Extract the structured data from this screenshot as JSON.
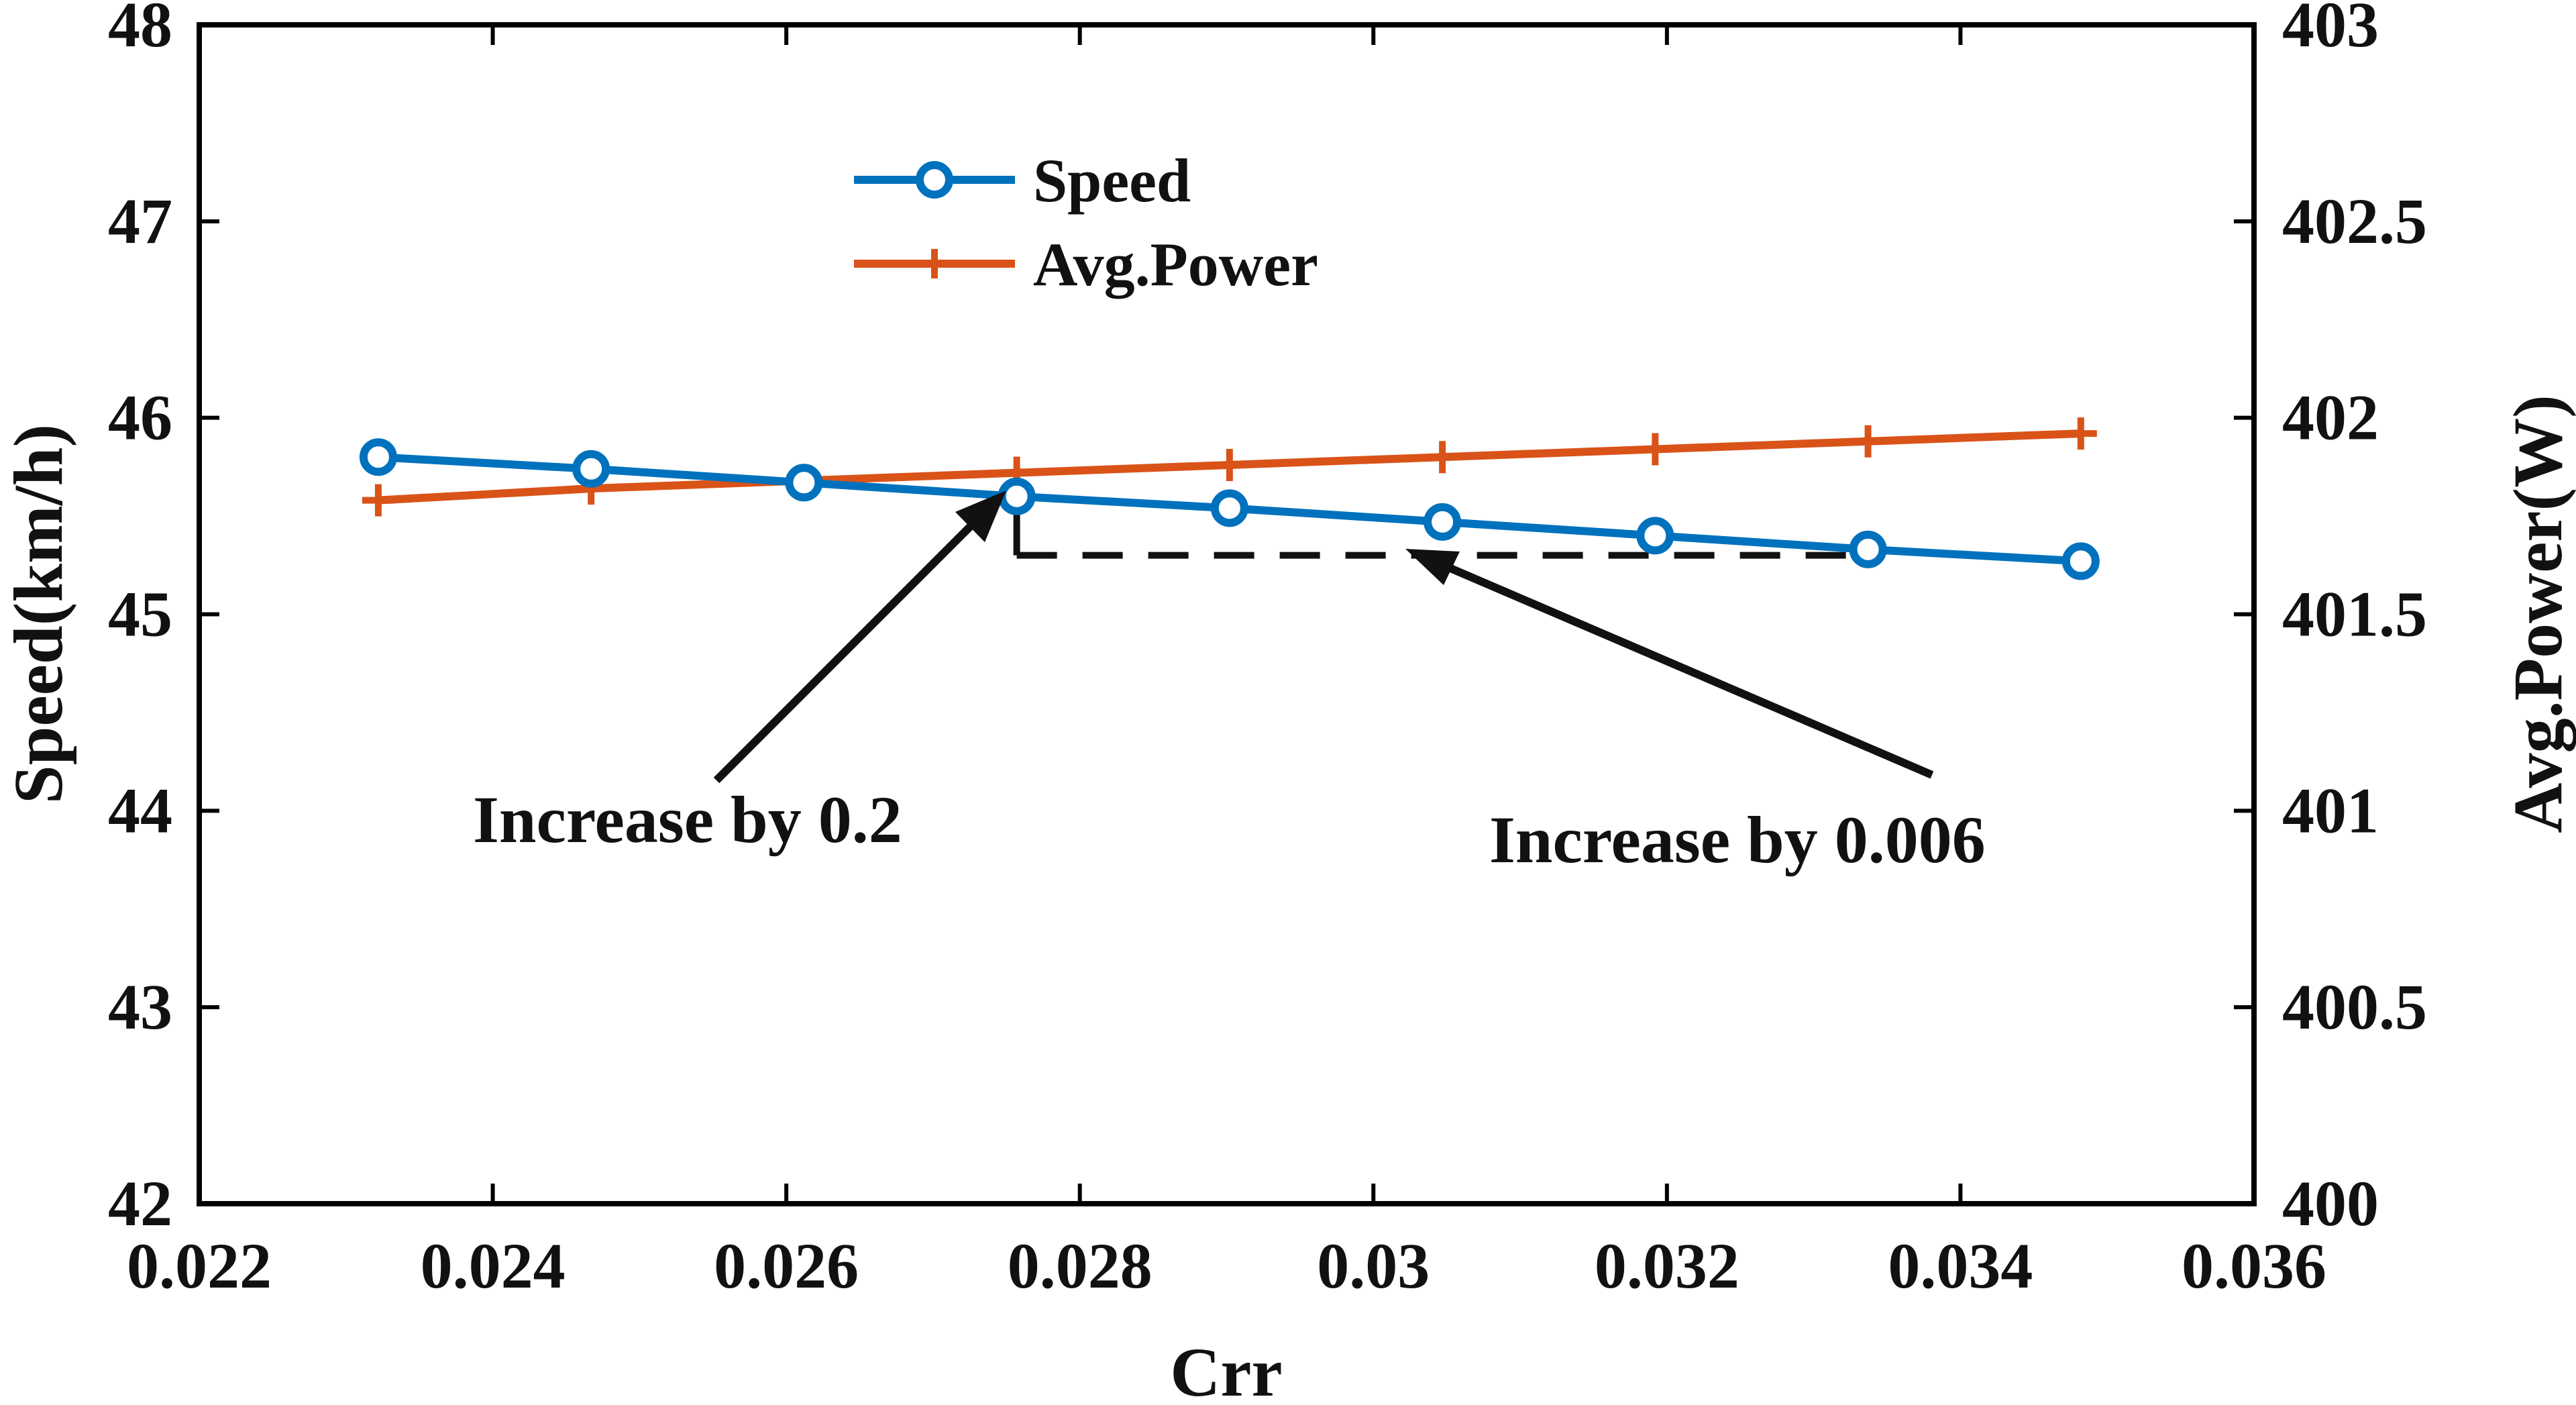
{
  "chart_data": {
    "type": "line",
    "xlabel": "Crr",
    "ylabel": "Speed(km/h)",
    "y2label": "Avg.Power(W)",
    "xlim": [
      0.022,
      0.036
    ],
    "ylim": [
      42,
      48
    ],
    "y2lim": [
      400,
      403
    ],
    "xticks": [
      "0.022",
      "0.024",
      "0.026",
      "0.028",
      "0.03",
      "0.032",
      "0.034",
      "0.036"
    ],
    "yticks": [
      "42",
      "43",
      "44",
      "45",
      "46",
      "47",
      "48"
    ],
    "y2ticks": [
      "400",
      "400.5",
      "401",
      "401.5",
      "402",
      "402.5",
      "403"
    ],
    "x": [
      0.02322,
      0.02467,
      0.02612,
      0.02757,
      0.02902,
      0.03047,
      0.03192,
      0.03337,
      0.03482
    ],
    "series": [
      {
        "name": "Speed",
        "axis": "left",
        "color": "#0072bd",
        "marker": "circle",
        "values": [
          45.8,
          45.74,
          45.67,
          45.6,
          45.54,
          45.47,
          45.4,
          45.33,
          45.27
        ]
      },
      {
        "name": "Avg.Power",
        "axis": "right",
        "color": "#d95319",
        "marker": "plus",
        "values": [
          401.79,
          401.82,
          401.84,
          401.86,
          401.88,
          401.9,
          401.92,
          401.94,
          401.96
        ]
      }
    ],
    "legend_position": "top-left",
    "annotations": [
      {
        "text": "Increase by 0.2"
      },
      {
        "text": "Increase by 0.006"
      }
    ]
  }
}
